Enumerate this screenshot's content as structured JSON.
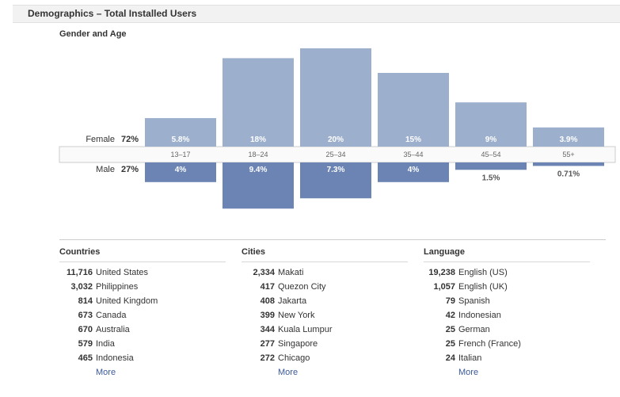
{
  "header": {
    "title": "Demographics – Total Installed Users"
  },
  "chart_data": {
    "type": "bar",
    "title": "Gender and Age",
    "categories": [
      "13-17",
      "18-24",
      "25-34",
      "35-44",
      "45-54",
      "55+"
    ],
    "category_labels": [
      "13–17",
      "18–24",
      "25–34",
      "35–44",
      "45–54",
      "55+"
    ],
    "series": [
      {
        "name": "Female",
        "total_label": "72%",
        "values": [
          5.8,
          18,
          20,
          15,
          9,
          3.9
        ],
        "value_labels": [
          "5.8%",
          "18%",
          "20%",
          "15%",
          "9%",
          "3.9%"
        ],
        "color": "#9cafcc",
        "direction": "up"
      },
      {
        "name": "Male",
        "total_label": "27%",
        "values": [
          4,
          9.4,
          7.3,
          4,
          1.5,
          0.71
        ],
        "value_labels": [
          "4%",
          "9.4%",
          "7.3%",
          "4%",
          "1.5%",
          "0.71%"
        ],
        "color": "#6b84b3",
        "direction": "down"
      }
    ],
    "ylim": [
      0,
      20
    ],
    "xlabel": "",
    "ylabel": ""
  },
  "countries": {
    "title": "Countries",
    "items": [
      {
        "count": "11,716",
        "name": "United States"
      },
      {
        "count": "3,032",
        "name": "Philippines"
      },
      {
        "count": "814",
        "name": "United Kingdom"
      },
      {
        "count": "673",
        "name": "Canada"
      },
      {
        "count": "670",
        "name": "Australia"
      },
      {
        "count": "579",
        "name": "India"
      },
      {
        "count": "465",
        "name": "Indonesia"
      }
    ],
    "more": "More"
  },
  "cities": {
    "title": "Cities",
    "items": [
      {
        "count": "2,334",
        "name": "Makati"
      },
      {
        "count": "417",
        "name": "Quezon City"
      },
      {
        "count": "408",
        "name": "Jakarta"
      },
      {
        "count": "399",
        "name": "New York"
      },
      {
        "count": "344",
        "name": "Kuala Lumpur"
      },
      {
        "count": "277",
        "name": "Singapore"
      },
      {
        "count": "272",
        "name": "Chicago"
      }
    ],
    "more": "More"
  },
  "language": {
    "title": "Language",
    "items": [
      {
        "count": "19,238",
        "name": "English (US)"
      },
      {
        "count": "1,057",
        "name": "English (UK)"
      },
      {
        "count": "79",
        "name": "Spanish"
      },
      {
        "count": "42",
        "name": "Indonesian"
      },
      {
        "count": "25",
        "name": "German"
      },
      {
        "count": "25",
        "name": "French (France)"
      },
      {
        "count": "24",
        "name": "Italian"
      }
    ],
    "more": "More"
  }
}
